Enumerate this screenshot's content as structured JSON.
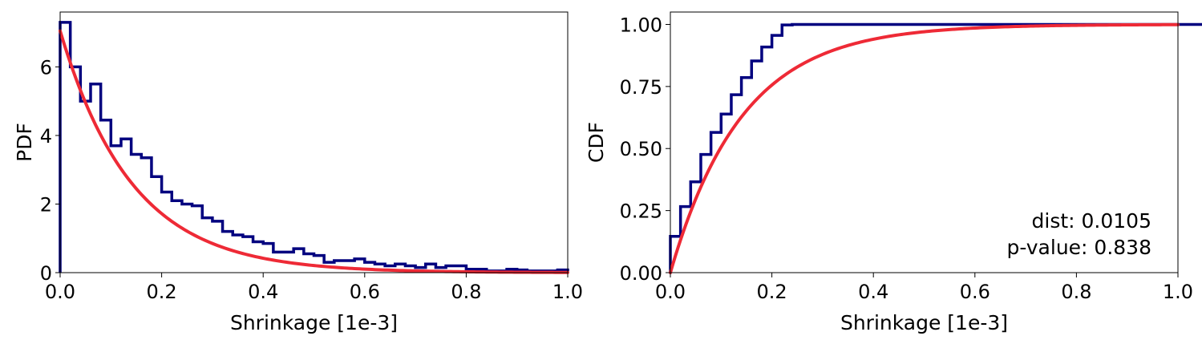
{
  "colors": {
    "histogram": "#00007f",
    "fit": "#ee2a36",
    "axes": "#000000"
  },
  "chart_data": [
    {
      "type": "histogram",
      "xlabel": "Shrinkage [1e-3]",
      "ylabel": "PDF",
      "xlim": [
        0.0,
        1.0
      ],
      "ylim": [
        0.0,
        7.6
      ],
      "xticks": [
        "0.0",
        "0.2",
        "0.4",
        "0.6",
        "0.8",
        "1.0"
      ],
      "yticks": [
        "0",
        "2",
        "4",
        "6"
      ],
      "bin_width": 0.02,
      "histogram": [
        7.3,
        6.0,
        5.0,
        5.5,
        4.45,
        3.7,
        3.9,
        3.45,
        3.35,
        2.8,
        2.35,
        2.1,
        2.0,
        1.95,
        1.6,
        1.5,
        1.2,
        1.1,
        1.05,
        0.9,
        0.85,
        0.6,
        0.6,
        0.7,
        0.55,
        0.5,
        0.3,
        0.35,
        0.35,
        0.4,
        0.3,
        0.25,
        0.2,
        0.25,
        0.2,
        0.15,
        0.25,
        0.15,
        0.2,
        0.2,
        0.1,
        0.1,
        0.05,
        0.05,
        0.1,
        0.08,
        0.05,
        0.05,
        0.05,
        0.08,
        0.04,
        0.05,
        0.04,
        0.05,
        0.03,
        0.03,
        0.05,
        0.03,
        0.03,
        0.02,
        0.02,
        0.02,
        0.02,
        0.02,
        0.02,
        0.02,
        0.02,
        0.01,
        0.01,
        0.01,
        0.01,
        0.01,
        0.01,
        0.01,
        0.01
      ],
      "fit": {
        "kind": "exponential",
        "rate": 7.05
      }
    },
    {
      "type": "line",
      "xlabel": "Shrinkage [1e-3]",
      "ylabel": "CDF",
      "xlim": [
        0.0,
        1.0
      ],
      "ylim": [
        0.0,
        1.05
      ],
      "xticks": [
        "0.0",
        "0.2",
        "0.4",
        "0.6",
        "0.8",
        "1.0"
      ],
      "yticks": [
        "0.00",
        "0.25",
        "0.50",
        "0.75",
        "1.00"
      ],
      "fit": {
        "kind": "exponential",
        "rate": 7.05
      },
      "annotation": [
        "dist: 0.0105",
        "p-value:  0.838"
      ]
    }
  ]
}
